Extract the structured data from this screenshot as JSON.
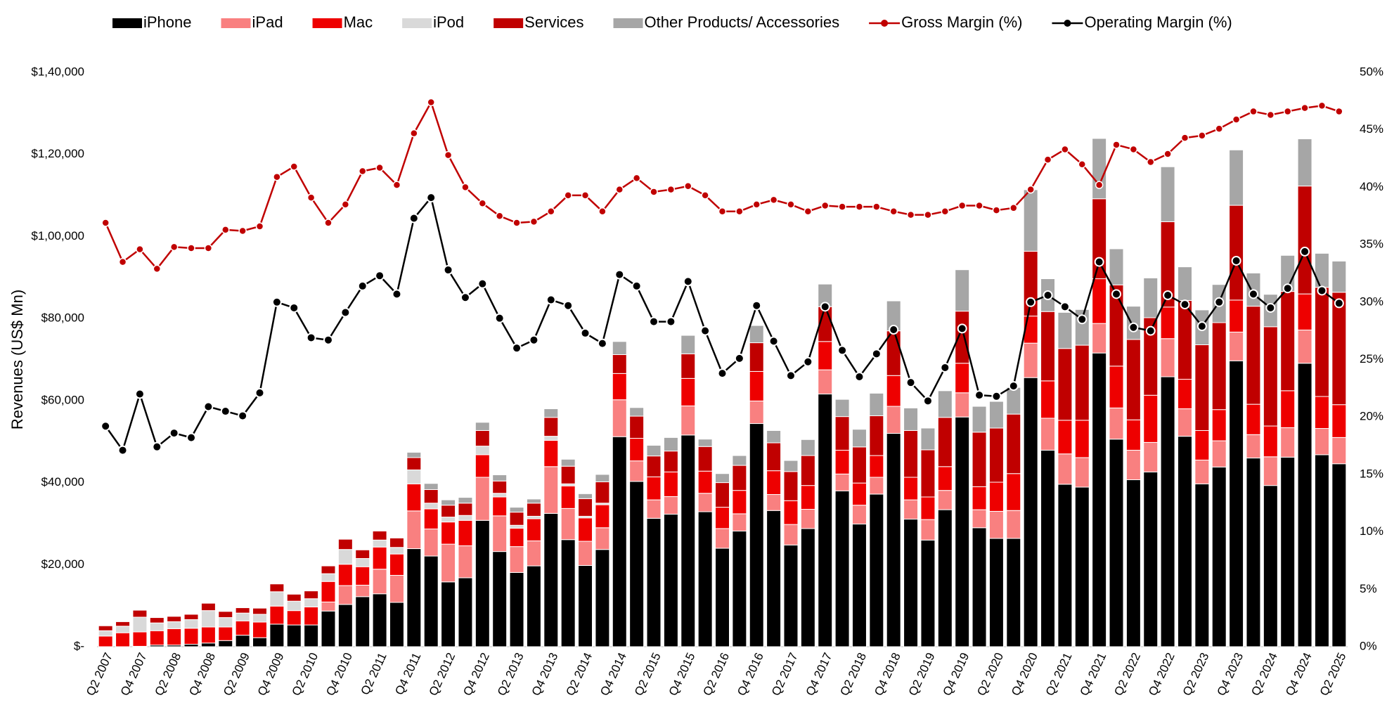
{
  "chart_data": {
    "type": "bar",
    "subtype": "stacked-bar-with-secondary-lines",
    "title": "",
    "ylabel": "Revenues (US$ Mn)",
    "ylim": [
      0,
      140000
    ],
    "y_ticks": [
      0,
      20000,
      40000,
      60000,
      80000,
      100000,
      120000,
      140000
    ],
    "y_tick_labels": [
      "$-",
      "$20,000",
      "$40,000",
      "$60,000",
      "$80,000",
      "$1,00,000",
      "$1,20,000",
      "$1,40,000"
    ],
    "y2lim": [
      0,
      50
    ],
    "y2_ticks": [
      0,
      5,
      10,
      15,
      20,
      25,
      30,
      35,
      40,
      45,
      50
    ],
    "y2_tick_labels": [
      "0%",
      "5%",
      "10%",
      "15%",
      "20%",
      "25%",
      "30%",
      "35%",
      "40%",
      "45%",
      "50%"
    ],
    "legend_position": "top",
    "categories": [
      "Q2 2007",
      "Q3 2007",
      "Q4 2007",
      "Q1 2008",
      "Q2 2008",
      "Q3 2008",
      "Q4 2008",
      "Q1 2009",
      "Q2 2009",
      "Q3 2009",
      "Q4 2009",
      "Q1 2010",
      "Q2 2010",
      "Q3 2010",
      "Q4 2010",
      "Q1 2011",
      "Q2 2011",
      "Q3 2011",
      "Q4 2011",
      "Q1 2012",
      "Q2 2012",
      "Q3 2012",
      "Q4 2012",
      "Q1 2013",
      "Q2 2013",
      "Q3 2013",
      "Q4 2013",
      "Q1 2014",
      "Q2 2014",
      "Q3 2014",
      "Q4 2014",
      "Q1 2015",
      "Q2 2015",
      "Q3 2015",
      "Q4 2015",
      "Q1 2016",
      "Q2 2016",
      "Q3 2016",
      "Q4 2016",
      "Q1 2017",
      "Q2 2017",
      "Q3 2017",
      "Q4 2017",
      "Q1 2018",
      "Q2 2018",
      "Q3 2018",
      "Q4 2018",
      "Q1 2019",
      "Q2 2019",
      "Q3 2019",
      "Q4 2019",
      "Q1 2020",
      "Q2 2020",
      "Q3 2020",
      "Q4 2020",
      "Q1 2021",
      "Q2 2021",
      "Q3 2021",
      "Q4 2021",
      "Q1 2022",
      "Q2 2022",
      "Q3 2022",
      "Q4 2022",
      "Q1 2023",
      "Q2 2023",
      "Q3 2023",
      "Q4 2023",
      "Q1 2024",
      "Q2 2024",
      "Q3 2024",
      "Q4 2024",
      "Q1 2025",
      "Q2 2025"
    ],
    "visible_x_labels": [
      "Q2 2007",
      "Q4 2007",
      "Q2 2008",
      "Q4 2008",
      "Q2 2009",
      "Q4 2009",
      "Q2 2010",
      "Q4 2010",
      "Q2 2011",
      "Q4 2011",
      "Q2 2012",
      "Q4 2012",
      "Q2 2013",
      "Q4 2013",
      "Q2 2014",
      "Q4 2014",
      "Q2 2015",
      "Q4 2015",
      "Q2 2016",
      "Q4 2016",
      "Q2 2017",
      "Q4 2017",
      "Q2 2018",
      "Q4 2018",
      "Q2 2019",
      "Q4 2019",
      "Q2 2020",
      "Q4 2020",
      "Q2 2021",
      "Q4 2021",
      "Q2 2022",
      "Q4 2022",
      "Q2 2023",
      "Q4 2023",
      "Q2 2024",
      "Q4 2024",
      "Q2 2025"
    ],
    "bar_series": [
      {
        "name": "iPhone",
        "color": "#000000",
        "values": [
          0,
          0,
          100,
          400,
          400,
          600,
          900,
          1500,
          2800,
          2200,
          5500,
          5300,
          5300,
          8700,
          10300,
          12200,
          12900,
          10800,
          23900,
          22100,
          15800,
          16800,
          30800,
          23200,
          18100,
          19700,
          32500,
          26100,
          19800,
          23700,
          51200,
          40300,
          31300,
          32300,
          51600,
          32900,
          24000,
          28200,
          54400,
          33200,
          24800,
          28800,
          61600,
          38000,
          29900,
          37200,
          52000,
          31100,
          26000,
          33400,
          56000,
          29000,
          26400,
          26400,
          65600,
          47900,
          39600,
          38900,
          71600,
          50600,
          40700,
          42600,
          65800,
          51300,
          39700,
          43800,
          69700,
          46000,
          39300,
          46200,
          69100,
          46800,
          44600
        ]
      },
      {
        "name": "iPad",
        "color": "#F98080",
        "values": [
          0,
          0,
          0,
          0,
          0,
          0,
          0,
          0,
          0,
          0,
          0,
          0,
          0,
          2200,
          4600,
          2800,
          6000,
          6600,
          9200,
          6600,
          9200,
          7800,
          10500,
          8700,
          6300,
          6100,
          11400,
          7600,
          5900,
          5300,
          9000,
          5000,
          4500,
          4300,
          7100,
          4500,
          4800,
          4200,
          5500,
          3900,
          5000,
          4700,
          5900,
          4100,
          4600,
          4100,
          6600,
          4700,
          5000,
          4700,
          5900,
          4400,
          6600,
          6800,
          8400,
          7800,
          7400,
          7200,
          7200,
          7600,
          7200,
          7200,
          9300,
          6700,
          5800,
          6400,
          7000,
          5700,
          7000,
          7200,
          8100,
          6400,
          6400
        ]
      },
      {
        "name": "Mac",
        "color": "#EE0000",
        "values": [
          2600,
          3400,
          3500,
          3500,
          4000,
          3900,
          3900,
          3300,
          3500,
          3800,
          4400,
          3500,
          4400,
          5000,
          5200,
          4500,
          5400,
          5200,
          6600,
          4900,
          5400,
          6200,
          5500,
          4600,
          4500,
          5400,
          6400,
          5500,
          5700,
          5600,
          6400,
          5500,
          5600,
          6000,
          6700,
          5400,
          5200,
          5700,
          7200,
          5800,
          5800,
          5800,
          6900,
          5800,
          5400,
          5300,
          7500,
          5500,
          5500,
          5800,
          7200,
          5600,
          7100,
          9000,
          6600,
          9100,
          8200,
          9100,
          10900,
          10200,
          7400,
          11500,
          7700,
          7200,
          7200,
          7600,
          7800,
          7400,
          7500,
          9000,
          8800,
          7800,
          8000
        ]
      },
      {
        "name": "iPod",
        "color": "#D9D9D9",
        "values": [
          1300,
          1600,
          3600,
          1900,
          1700,
          2100,
          4000,
          2300,
          1900,
          1900,
          3500,
          2300,
          2000,
          1900,
          3600,
          2000,
          1700,
          1600,
          3400,
          1400,
          1200,
          1200,
          2100,
          900,
          700,
          600,
          1000,
          500,
          400,
          400,
          0,
          0,
          0,
          0,
          0,
          0,
          0,
          0,
          0,
          0,
          0,
          0,
          0,
          0,
          0,
          0,
          0,
          0,
          0,
          0,
          0,
          0,
          0,
          0,
          0,
          0,
          0,
          0,
          0,
          0,
          0,
          0,
          0,
          0,
          0,
          0,
          0,
          0,
          0,
          0,
          0,
          0,
          0
        ]
      },
      {
        "name": "Services",
        "color": "#C00000",
        "values": [
          1200,
          1100,
          1700,
          1300,
          1300,
          1300,
          1800,
          1500,
          1300,
          1500,
          1900,
          1700,
          1900,
          1900,
          2500,
          2100,
          2200,
          2300,
          3000,
          3300,
          2900,
          3000,
          3800,
          3000,
          3200,
          3200,
          4600,
          4300,
          4300,
          5200,
          4600,
          5400,
          5100,
          5100,
          6000,
          6000,
          6000,
          6100,
          7000,
          6800,
          7100,
          7300,
          8500,
          8200,
          8800,
          9700,
          10900,
          11400,
          11500,
          12000,
          12700,
          13300,
          13200,
          14500,
          15800,
          16900,
          17500,
          18300,
          19500,
          19800,
          19600,
          18900,
          20800,
          19200,
          20900,
          21200,
          23100,
          23900,
          24200,
          24200,
          26300,
          26600,
          27400
        ]
      },
      {
        "name": "Other Products/ Accessories",
        "color": "#A6A6A6",
        "values": [
          0,
          0,
          0,
          0,
          0,
          0,
          0,
          0,
          0,
          0,
          0,
          0,
          0,
          0,
          0,
          0,
          0,
          0,
          1300,
          1500,
          1300,
          1400,
          2000,
          1500,
          1200,
          1000,
          2100,
          1700,
          1200,
          1800,
          3200,
          2100,
          2600,
          3300,
          4500,
          1800,
          2200,
          2400,
          4200,
          3000,
          2700,
          3900,
          5500,
          4200,
          4300,
          5500,
          7300,
          5500,
          5300,
          6500,
          10100,
          6300,
          6500,
          6500,
          15000,
          8000,
          8800,
          8700,
          14700,
          8800,
          8100,
          9700,
          13400,
          8200,
          8500,
          9300,
          13500,
          8100,
          7900,
          8800,
          11500,
          8300,
          7600
        ]
      }
    ],
    "line_series": [
      {
        "name": "Gross Margin (%)",
        "color": "#C00000",
        "values": [
          36.9,
          33.5,
          34.6,
          32.9,
          34.8,
          34.7,
          34.7,
          36.3,
          36.2,
          36.6,
          40.9,
          41.8,
          39.1,
          36.9,
          38.5,
          41.4,
          41.7,
          40.2,
          44.7,
          47.4,
          42.8,
          40.0,
          38.6,
          37.5,
          36.9,
          37.0,
          37.9,
          39.3,
          39.3,
          37.9,
          39.8,
          40.8,
          39.6,
          39.8,
          40.1,
          39.3,
          37.9,
          37.9,
          38.5,
          38.9,
          38.5,
          37.9,
          38.4,
          38.3,
          38.3,
          38.3,
          37.9,
          37.6,
          37.6,
          37.9,
          38.4,
          38.4,
          38.0,
          38.2,
          39.8,
          42.4,
          43.3,
          42.0,
          40.2,
          43.7,
          43.3,
          42.2,
          42.9,
          44.3,
          44.5,
          45.1,
          45.9,
          46.6,
          46.3,
          46.6,
          46.9,
          47.1,
          46.6
        ]
      },
      {
        "name": "Operating Margin (%)",
        "color": "#000000",
        "values": [
          19.2,
          17.1,
          22.0,
          17.4,
          18.6,
          18.2,
          20.9,
          20.5,
          20.1,
          22.1,
          30.0,
          29.5,
          26.9,
          26.7,
          29.1,
          31.4,
          32.3,
          30.7,
          37.3,
          39.1,
          32.8,
          30.4,
          31.6,
          28.6,
          26.0,
          26.7,
          30.2,
          29.7,
          27.3,
          26.4,
          32.4,
          31.4,
          28.3,
          28.3,
          31.8,
          27.5,
          23.8,
          25.1,
          29.7,
          26.6,
          23.6,
          24.8,
          29.6,
          25.8,
          23.5,
          25.5,
          27.6,
          23.0,
          21.4,
          24.3,
          27.7,
          21.9,
          21.8,
          22.7,
          30.0,
          30.6,
          29.6,
          28.5,
          33.5,
          30.7,
          27.8,
          27.5,
          30.6,
          29.8,
          27.9,
          30.0,
          33.6,
          30.7,
          29.5,
          31.2,
          34.4,
          31.0,
          29.9
        ]
      }
    ]
  }
}
